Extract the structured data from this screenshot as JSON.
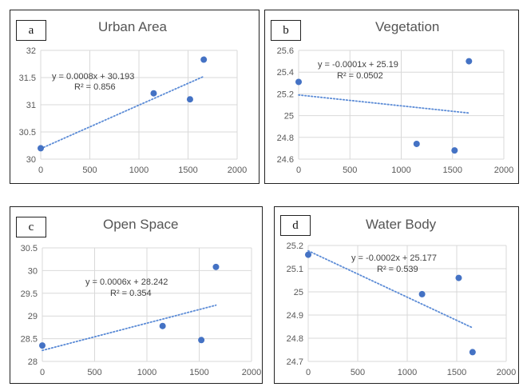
{
  "chart_data": [
    {
      "type": "scatter",
      "panel_letter": "a",
      "title": "Urban Area",
      "x": [
        0,
        1150,
        1520,
        1660
      ],
      "y": [
        30.2,
        31.21,
        31.1,
        31.83
      ],
      "xlim": [
        0,
        2000
      ],
      "ylim": [
        30,
        32
      ],
      "xticks": [
        "0",
        "500",
        "1000",
        "1500",
        "2000"
      ],
      "yticks": [
        "30",
        "30.5",
        "31",
        "31.5",
        "32"
      ],
      "trendline": {
        "type": "linear",
        "slope": 0.0008,
        "intercept": 30.193,
        "x_range": [
          0,
          1660
        ]
      },
      "equation": "y = 0.0008x + 30.193",
      "r2": "R² = 0.856",
      "grid": true,
      "point_color": "#4472c4"
    },
    {
      "type": "scatter",
      "panel_letter": "b",
      "title": "Vegetation",
      "x": [
        0,
        1150,
        1520,
        1660
      ],
      "y": [
        25.31,
        24.74,
        24.68,
        25.5
      ],
      "xlim": [
        0,
        2000
      ],
      "ylim": [
        24.6,
        25.6
      ],
      "xticks": [
        "0",
        "500",
        "1000",
        "1500",
        "2000"
      ],
      "yticks": [
        "24.6",
        "24.8",
        "25",
        "25.2",
        "25.4",
        "25.6"
      ],
      "trendline": {
        "type": "linear",
        "slope": -0.0001,
        "intercept": 25.19,
        "x_range": [
          0,
          1660
        ]
      },
      "equation": "y = -0.0001x + 25.19",
      "r2": "R² = 0.0502",
      "grid": true,
      "point_color": "#4472c4"
    },
    {
      "type": "scatter",
      "panel_letter": "c",
      "title": "Open Space",
      "x": [
        0,
        1150,
        1520,
        1660
      ],
      "y": [
        28.35,
        28.78,
        28.47,
        30.08
      ],
      "xlim": [
        0,
        2000
      ],
      "ylim": [
        28,
        30.5
      ],
      "xticks": [
        "0",
        "500",
        "1000",
        "1500",
        "2000"
      ],
      "yticks": [
        "28",
        "28.5",
        "29",
        "29.5",
        "30",
        "30.5"
      ],
      "trendline": {
        "type": "linear",
        "slope": 0.0006,
        "intercept": 28.242,
        "x_range": [
          0,
          1660
        ]
      },
      "equation": "y = 0.0006x + 28.242",
      "r2": "R² = 0.354",
      "grid": true,
      "point_color": "#4472c4"
    },
    {
      "type": "scatter",
      "panel_letter": "d",
      "title": "Water Body",
      "x": [
        0,
        1150,
        1520,
        1660
      ],
      "y": [
        25.16,
        24.99,
        25.06,
        24.74
      ],
      "xlim": [
        0,
        2000
      ],
      "ylim": [
        24.7,
        25.2
      ],
      "xticks": [
        "0",
        "500",
        "1000",
        "1500",
        "2000"
      ],
      "yticks": [
        "24.7",
        "24.8",
        "24.9",
        "25",
        "25.1",
        "25.2"
      ],
      "trendline": {
        "type": "linear",
        "slope": -0.0002,
        "intercept": 25.177,
        "x_range": [
          0,
          1660
        ]
      },
      "equation": "y = -0.0002x + 25.177",
      "r2": "R² = 0.539",
      "grid": true,
      "point_color": "#4472c4"
    }
  ]
}
